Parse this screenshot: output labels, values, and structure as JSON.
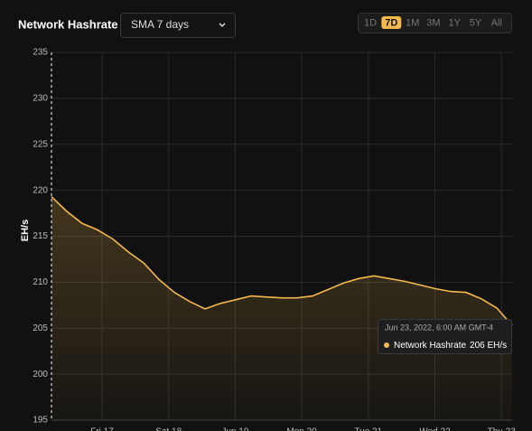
{
  "header": {
    "title": "Network Hashrate",
    "dropdown": "SMA 7 days",
    "ranges": [
      "1D",
      "7D",
      "1M",
      "3M",
      "1Y",
      "5Y",
      "All"
    ],
    "active_range": "7D"
  },
  "chart_data": {
    "type": "area",
    "y_label": "EH/s",
    "series": [
      {
        "name": "Network Hashrate",
        "color": "#f3b94a",
        "values": [
          219.3,
          217.7,
          216.4,
          215.7,
          214.7,
          213.3,
          212.1,
          210.3,
          208.9,
          207.9,
          207.1,
          207.7,
          208.1,
          208.5,
          208.4,
          208.3,
          208.3,
          208.5,
          209.2,
          209.9,
          210.4,
          210.7,
          210.4,
          210.1,
          209.7,
          209.3,
          209.0,
          208.9,
          208.2,
          207.2,
          205.3
        ]
      }
    ],
    "ylim": [
      195,
      235
    ],
    "yticks": [
      195,
      200,
      205,
      210,
      215,
      220,
      225,
      230,
      235
    ],
    "xticks": [
      "Fri 17",
      "Sat 18",
      "Jun 19",
      "Mon 20",
      "Tue 21",
      "Wed 22",
      "Thu 23"
    ],
    "grid": true,
    "tooltip": {
      "title": "Jun 23, 2022, 6:00 AM GMT-4",
      "value": "206 EH/s"
    }
  }
}
